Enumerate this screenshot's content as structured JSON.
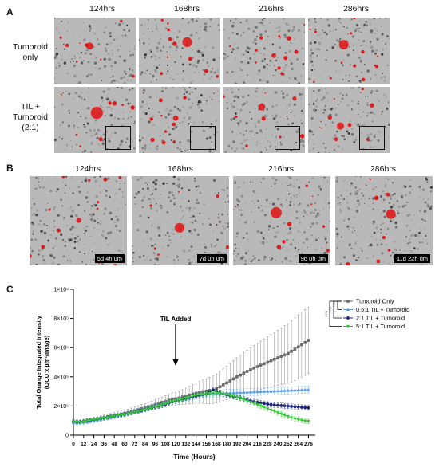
{
  "panelA": {
    "letter": "A",
    "timepoints": [
      "124hrs",
      "168hrs",
      "216hrs",
      "286hrs"
    ],
    "rows": [
      {
        "label_lines": [
          "Tumoroid",
          "only"
        ]
      },
      {
        "label_lines": [
          "TIL +",
          "Tumoroid",
          "(2:1)"
        ]
      }
    ]
  },
  "panelB": {
    "letter": "B",
    "timepoints": [
      "124hrs",
      "168hrs",
      "216hrs",
      "286hrs"
    ],
    "timestamps": [
      "5d 4h 0m",
      "7d 0h 0m",
      "9d 0h 0m",
      "11d 22h 0m"
    ]
  },
  "panelC": {
    "letter": "C",
    "annotation": "TIL Added",
    "significance": [
      "****",
      "****",
      "****"
    ]
  },
  "colors": {
    "tumoroid_only": "#6b6b6b",
    "til_05": "#5aa0e6",
    "til_2": "#1a237e",
    "til_5": "#2ecc2e",
    "red_signal": "#e01b1b"
  },
  "chart_data": {
    "type": "line",
    "title": "",
    "xlabel": "Time (Hours)",
    "ylabel_lines": [
      "Total Orange Integrated  Intensity",
      "(OCU x µm²/Image)"
    ],
    "x": [
      0,
      4,
      8,
      12,
      16,
      20,
      24,
      28,
      32,
      36,
      40,
      44,
      48,
      52,
      56,
      60,
      64,
      68,
      72,
      76,
      80,
      84,
      88,
      92,
      96,
      100,
      104,
      108,
      112,
      116,
      120,
      124,
      128,
      132,
      136,
      140,
      144,
      148,
      152,
      156,
      160,
      164,
      168,
      172,
      176,
      180,
      184,
      188,
      192,
      196,
      200,
      204,
      208,
      212,
      216,
      220,
      224,
      228,
      232,
      236,
      240,
      244,
      248,
      252,
      256,
      260,
      264,
      268,
      272,
      276
    ],
    "xticks": [
      0,
      12,
      24,
      36,
      48,
      60,
      72,
      84,
      96,
      108,
      120,
      132,
      144,
      156,
      168,
      180,
      192,
      204,
      216,
      228,
      240,
      252,
      264,
      276
    ],
    "xlim": [
      0,
      284
    ],
    "ylim": [
      0,
      1000000
    ],
    "yticks": [
      0,
      200000,
      400000,
      600000,
      800000,
      1000000
    ],
    "ytick_labels": [
      "0",
      "2×10⁵",
      "4×10⁵",
      "6×10⁵",
      "8×10⁵",
      "1×10⁶"
    ],
    "legend_position": "top-right",
    "series": [
      {
        "name": "Tumoroid Only",
        "marker": "square",
        "values": [
          90000,
          88000,
          89000,
          92000,
          96000,
          100000,
          105000,
          110000,
          115000,
          120000,
          125000,
          130000,
          135000,
          140000,
          145000,
          150000,
          156000,
          162000,
          168000,
          175000,
          182000,
          188000,
          195000,
          202000,
          210000,
          218000,
          225000,
          232000,
          240000,
          248000,
          250000,
          255000,
          262000,
          268000,
          275000,
          282000,
          288000,
          293000,
          298000,
          302000,
          306000,
          310000,
          320000,
          332000,
          345000,
          358000,
          372000,
          386000,
          400000,
          412000,
          425000,
          437000,
          448000,
          460000,
          470000,
          480000,
          490000,
          500000,
          510000,
          520000,
          530000,
          540000,
          550000,
          560000,
          575000,
          590000,
          605000,
          620000,
          635000,
          650000
        ],
        "err": [
          16000,
          16000,
          16000,
          17000,
          17000,
          17000,
          18000,
          18000,
          19000,
          19000,
          20000,
          20000,
          21000,
          21000,
          22000,
          22000,
          23000,
          24000,
          25000,
          26000,
          27000,
          28000,
          29000,
          30000,
          32000,
          34000,
          36000,
          38000,
          40000,
          42000,
          44000,
          46000,
          50000,
          55000,
          60000,
          65000,
          70000,
          75000,
          80000,
          85000,
          90000,
          95000,
          100000,
          105000,
          110000,
          115000,
          120000,
          125000,
          130000,
          135000,
          140000,
          145000,
          150000,
          155000,
          160000,
          165000,
          170000,
          175000,
          180000,
          185000,
          190000,
          195000,
          200000,
          205000,
          210000,
          215000,
          220000,
          222000,
          225000,
          228000
        ]
      },
      {
        "name": "0.5:1 TIL + Tumoroid",
        "marker": "triangle",
        "values": [
          85000,
          84000,
          85000,
          88000,
          91000,
          95000,
          99000,
          103000,
          108000,
          112000,
          117000,
          122000,
          127000,
          132000,
          137000,
          142000,
          148000,
          154000,
          160000,
          166000,
          172000,
          178000,
          184000,
          190000,
          197000,
          204000,
          211000,
          218000,
          225000,
          232000,
          236000,
          240000,
          245000,
          250000,
          256000,
          262000,
          268000,
          273000,
          277000,
          280000,
          282000,
          283000,
          284000,
          285000,
          287000,
          288000,
          289000,
          290000,
          291000,
          292000,
          293000,
          294000,
          295000,
          296000,
          297000,
          298000,
          299000,
          300000,
          301000,
          302000,
          303000,
          304000,
          305000,
          306000,
          307000,
          308000,
          309000,
          310000,
          311000,
          312000
        ],
        "err": [
          12000,
          12000,
          12000,
          12000,
          12000,
          12000,
          13000,
          13000,
          13000,
          13000,
          14000,
          14000,
          14000,
          14000,
          15000,
          15000,
          15000,
          16000,
          16000,
          16000,
          17000,
          17000,
          17000,
          18000,
          18000,
          18000,
          19000,
          19000,
          19000,
          20000,
          20000,
          20000,
          21000,
          21000,
          21000,
          22000,
          22000,
          22000,
          23000,
          23000,
          23000,
          24000,
          24000,
          24000,
          25000,
          25000,
          25000,
          25000,
          25000,
          25000,
          25000,
          25000,
          25000,
          25000,
          25000,
          25000,
          25000,
          25000,
          25000,
          25000,
          25000,
          25000,
          25000,
          25000,
          25000,
          25000,
          25000,
          25000,
          25000,
          25000
        ]
      },
      {
        "name": "2:1 TIL + Tumoroid",
        "marker": "circle",
        "values": [
          95000,
          92000,
          93000,
          96000,
          100000,
          104000,
          108000,
          112000,
          116000,
          120000,
          124000,
          128000,
          132000,
          136000,
          140000,
          144000,
          148000,
          153000,
          158000,
          163000,
          168000,
          174000,
          180000,
          186000,
          192000,
          198000,
          205000,
          212000,
          220000,
          228000,
          235000,
          241000,
          247000,
          253000,
          258000,
          263000,
          268000,
          273000,
          278000,
          283000,
          295000,
          310000,
          300000,
          290000,
          282000,
          276000,
          270000,
          265000,
          260000,
          254000,
          248000,
          242000,
          236000,
          230000,
          225000,
          221000,
          217000,
          213000,
          210000,
          207000,
          205000,
          203000,
          201000,
          199000,
          197000,
          195000,
          193000,
          191000,
          189000,
          187000
        ],
        "err": [
          10000,
          10000,
          10000,
          10000,
          10000,
          10000,
          10000,
          11000,
          11000,
          11000,
          11000,
          11000,
          12000,
          12000,
          12000,
          12000,
          12000,
          13000,
          13000,
          13000,
          13000,
          14000,
          14000,
          14000,
          14000,
          15000,
          15000,
          15000,
          15000,
          16000,
          16000,
          16000,
          16000,
          16000,
          16000,
          17000,
          17000,
          17000,
          17000,
          17000,
          17000,
          17000,
          17000,
          17000,
          17000,
          17000,
          17000,
          17000,
          17000,
          17000,
          17000,
          17000,
          17000,
          17000,
          17000,
          17000,
          17000,
          17000,
          17000,
          17000,
          17000,
          17000,
          17000,
          17000,
          17000,
          17000,
          17000,
          17000,
          17000,
          17000
        ]
      },
      {
        "name": "5:1 TIL + Tumoroid",
        "marker": "triangle-down",
        "values": [
          92000,
          90000,
          91000,
          94000,
          98000,
          102000,
          106000,
          110000,
          114000,
          118000,
          122000,
          126000,
          130000,
          134000,
          138000,
          142000,
          147000,
          152000,
          157000,
          162000,
          168000,
          174000,
          180000,
          186000,
          193000,
          200000,
          207000,
          214000,
          222000,
          230000,
          236000,
          242000,
          248000,
          254000,
          260000,
          266000,
          272000,
          277000,
          281000,
          284000,
          286000,
          287000,
          287000,
          285000,
          282000,
          278000,
          273000,
          267000,
          260000,
          252000,
          244000,
          235000,
          226000,
          217000,
          208000,
          199000,
          190000,
          181000,
          172000,
          163000,
          154000,
          145000,
          136000,
          128000,
          120000,
          113000,
          107000,
          102000,
          98000,
          95000
        ],
        "err": [
          10000,
          10000,
          10000,
          10000,
          10000,
          10000,
          10000,
          11000,
          11000,
          11000,
          11000,
          11000,
          12000,
          12000,
          12000,
          12000,
          12000,
          13000,
          13000,
          13000,
          13000,
          14000,
          14000,
          14000,
          14000,
          15000,
          15000,
          15000,
          15000,
          16000,
          16000,
          16000,
          16000,
          16000,
          16000,
          17000,
          17000,
          17000,
          17000,
          17000,
          17000,
          17000,
          17000,
          17000,
          17000,
          17000,
          17000,
          17000,
          17000,
          17000,
          17000,
          17000,
          17000,
          17000,
          17000,
          17000,
          17000,
          17000,
          17000,
          17000,
          17000,
          17000,
          17000,
          17000,
          17000,
          17000,
          17000,
          17000,
          17000,
          17000
        ]
      }
    ]
  }
}
